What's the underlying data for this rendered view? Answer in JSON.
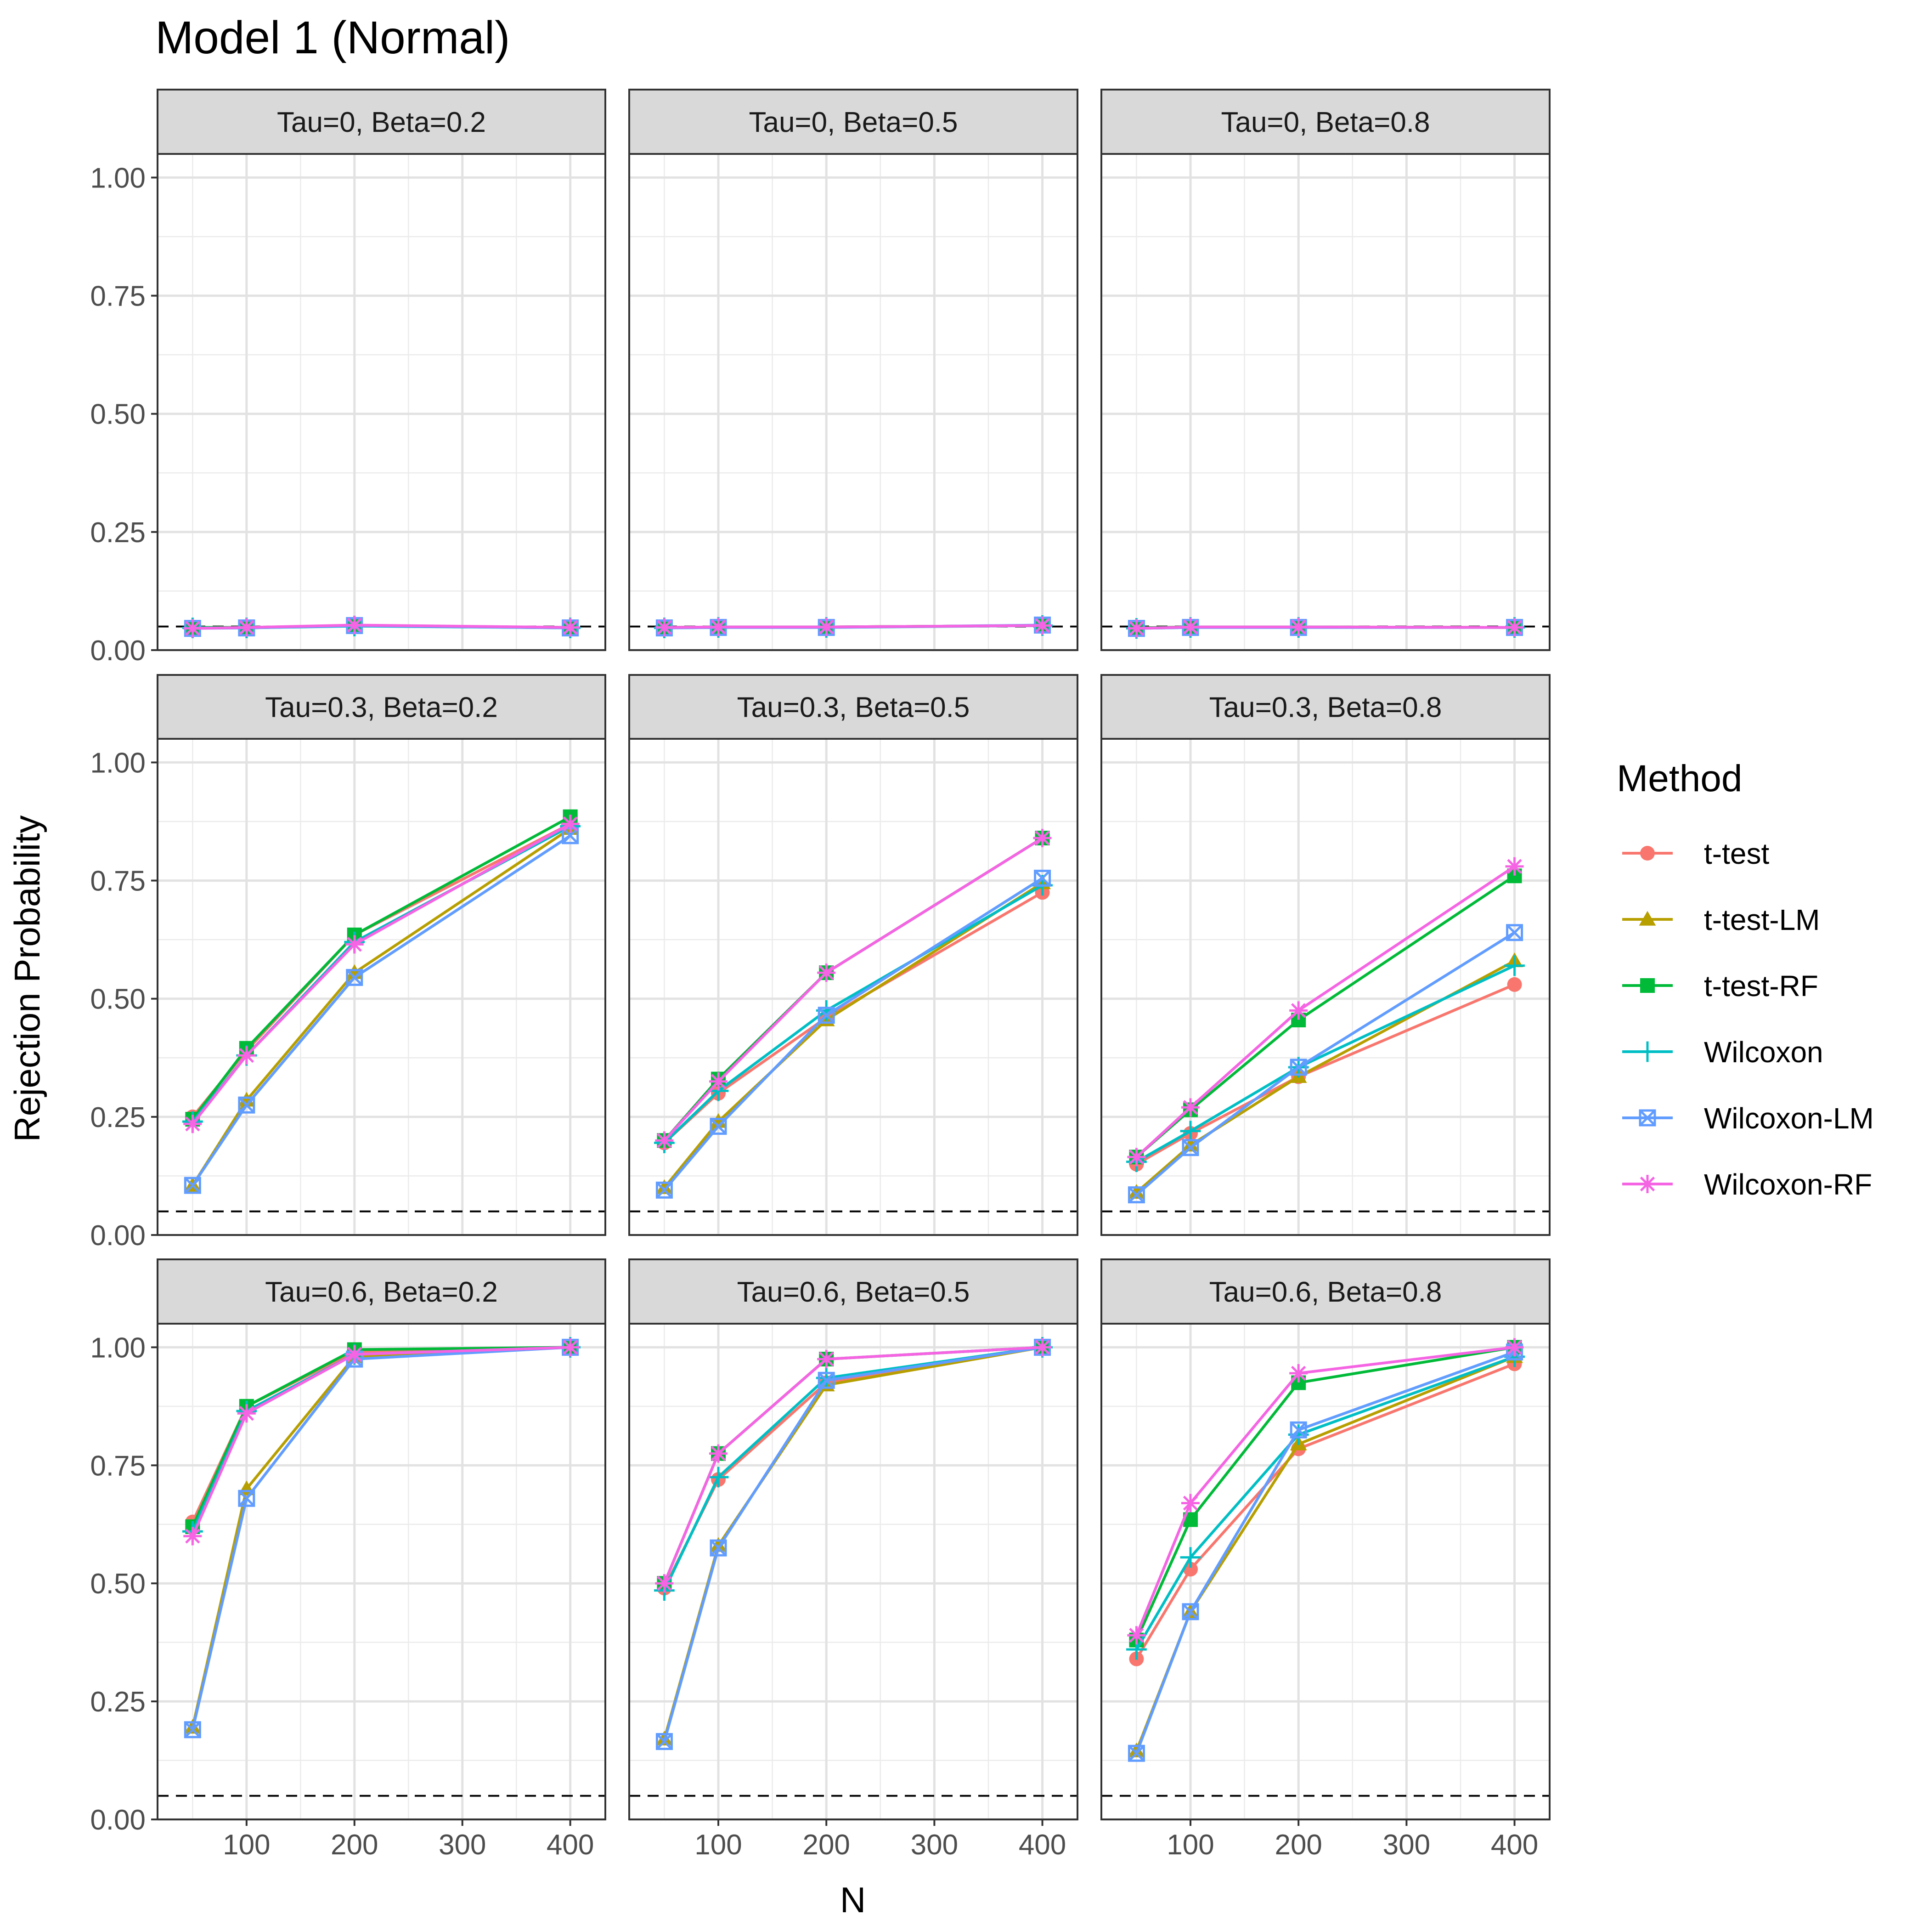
{
  "chart_data": {
    "type": "line",
    "title": "Model 1 (Normal)",
    "xlabel": "N",
    "ylabel": "Rejection Probability",
    "x": [
      50,
      100,
      200,
      400
    ],
    "x_ticks": [
      100,
      200,
      300,
      400
    ],
    "x_tick_labels": [
      "100",
      "200",
      "300",
      "400"
    ],
    "xlim": [
      17.5,
      432.5
    ],
    "y_ticks": [
      0,
      0.25,
      0.5,
      0.75,
      1
    ],
    "y_tick_labels": [
      "0.00",
      "0.25",
      "0.50",
      "0.75",
      "1.00"
    ],
    "ylim": [
      0,
      1.05
    ],
    "reference_line": 0.05,
    "grid": true,
    "legend": {
      "title": "Method",
      "position": "right"
    },
    "series_styles": [
      {
        "name": "t-test",
        "color": "#F8766D",
        "shape": "circle"
      },
      {
        "name": "t-test-LM",
        "color": "#B79F00",
        "shape": "triangle"
      },
      {
        "name": "t-test-RF",
        "color": "#00BA38",
        "shape": "square"
      },
      {
        "name": "Wilcoxon",
        "color": "#00BFC4",
        "shape": "plus"
      },
      {
        "name": "Wilcoxon-LM",
        "color": "#619CFF",
        "shape": "square-x"
      },
      {
        "name": "Wilcoxon-RF",
        "color": "#F564E3",
        "shape": "asterisk"
      }
    ],
    "panels": [
      {
        "label": "Tau=0, Beta=0.2",
        "series": [
          {
            "name": "t-test",
            "values": [
              0.048,
              0.047,
              0.052,
              0.047
            ]
          },
          {
            "name": "t-test-LM",
            "values": [
              0.048,
              0.048,
              0.052,
              0.048
            ]
          },
          {
            "name": "t-test-RF",
            "values": [
              0.048,
              0.048,
              0.052,
              0.048
            ]
          },
          {
            "name": "Wilcoxon",
            "values": [
              0.047,
              0.047,
              0.051,
              0.047
            ]
          },
          {
            "name": "Wilcoxon-LM",
            "values": [
              0.046,
              0.047,
              0.052,
              0.047
            ]
          },
          {
            "name": "Wilcoxon-RF",
            "values": [
              0.046,
              0.048,
              0.053,
              0.048
            ]
          }
        ]
      },
      {
        "label": "Tau=0, Beta=0.5",
        "series": [
          {
            "name": "t-test",
            "values": [
              0.048,
              0.049,
              0.049,
              0.052
            ]
          },
          {
            "name": "t-test-LM",
            "values": [
              0.048,
              0.049,
              0.049,
              0.052
            ]
          },
          {
            "name": "t-test-RF",
            "values": [
              0.048,
              0.049,
              0.049,
              0.052
            ]
          },
          {
            "name": "Wilcoxon",
            "values": [
              0.047,
              0.048,
              0.048,
              0.052
            ]
          },
          {
            "name": "Wilcoxon-LM",
            "values": [
              0.047,
              0.048,
              0.048,
              0.053
            ]
          },
          {
            "name": "Wilcoxon-RF",
            "values": [
              0.048,
              0.049,
              0.049,
              0.052
            ]
          }
        ]
      },
      {
        "label": "Tau=0, Beta=0.8",
        "series": [
          {
            "name": "t-test",
            "values": [
              0.047,
              0.049,
              0.049,
              0.048
            ]
          },
          {
            "name": "t-test-LM",
            "values": [
              0.047,
              0.049,
              0.049,
              0.048
            ]
          },
          {
            "name": "t-test-RF",
            "values": [
              0.047,
              0.049,
              0.049,
              0.048
            ]
          },
          {
            "name": "Wilcoxon",
            "values": [
              0.046,
              0.048,
              0.048,
              0.048
            ]
          },
          {
            "name": "Wilcoxon-LM",
            "values": [
              0.046,
              0.048,
              0.048,
              0.048
            ]
          },
          {
            "name": "Wilcoxon-RF",
            "values": [
              0.046,
              0.049,
              0.049,
              0.048
            ]
          }
        ]
      },
      {
        "label": "Tau=0.3, Beta=0.2",
        "series": [
          {
            "name": "t-test",
            "values": [
              0.25,
              0.39,
              0.635,
              0.87
            ]
          },
          {
            "name": "t-test-LM",
            "values": [
              0.105,
              0.285,
              0.555,
              0.86
            ]
          },
          {
            "name": "t-test-RF",
            "values": [
              0.245,
              0.395,
              0.635,
              0.885
            ]
          },
          {
            "name": "Wilcoxon",
            "values": [
              0.24,
              0.38,
              0.62,
              0.865
            ]
          },
          {
            "name": "Wilcoxon-LM",
            "values": [
              0.105,
              0.275,
              0.545,
              0.845
            ]
          },
          {
            "name": "Wilcoxon-RF",
            "values": [
              0.235,
              0.38,
              0.615,
              0.87
            ]
          }
        ]
      },
      {
        "label": "Tau=0.3, Beta=0.5",
        "series": [
          {
            "name": "t-test",
            "values": [
              0.195,
              0.3,
              0.46,
              0.725
            ]
          },
          {
            "name": "t-test-LM",
            "values": [
              0.1,
              0.24,
              0.455,
              0.745
            ]
          },
          {
            "name": "t-test-RF",
            "values": [
              0.2,
              0.33,
              0.555,
              0.84
            ]
          },
          {
            "name": "Wilcoxon",
            "values": [
              0.195,
              0.305,
              0.475,
              0.74
            ]
          },
          {
            "name": "Wilcoxon-LM",
            "values": [
              0.095,
              0.23,
              0.465,
              0.755
            ]
          },
          {
            "name": "Wilcoxon-RF",
            "values": [
              0.2,
              0.325,
              0.555,
              0.84
            ]
          }
        ]
      },
      {
        "label": "Tau=0.3, Beta=0.8",
        "series": [
          {
            "name": "t-test",
            "values": [
              0.15,
              0.215,
              0.335,
              0.53
            ]
          },
          {
            "name": "t-test-LM",
            "values": [
              0.09,
              0.19,
              0.335,
              0.58
            ]
          },
          {
            "name": "t-test-RF",
            "values": [
              0.165,
              0.265,
              0.455,
              0.76
            ]
          },
          {
            "name": "Wilcoxon",
            "values": [
              0.155,
              0.22,
              0.355,
              0.57
            ]
          },
          {
            "name": "Wilcoxon-LM",
            "values": [
              0.085,
              0.185,
              0.355,
              0.64
            ]
          },
          {
            "name": "Wilcoxon-RF",
            "values": [
              0.165,
              0.27,
              0.475,
              0.78
            ]
          }
        ]
      },
      {
        "label": "Tau=0.6, Beta=0.2",
        "series": [
          {
            "name": "t-test",
            "values": [
              0.63,
              0.875,
              0.99,
              1.0
            ]
          },
          {
            "name": "t-test-LM",
            "values": [
              0.195,
              0.7,
              0.98,
              1.0
            ]
          },
          {
            "name": "t-test-RF",
            "values": [
              0.62,
              0.875,
              0.995,
              1.0
            ]
          },
          {
            "name": "Wilcoxon",
            "values": [
              0.61,
              0.865,
              0.985,
              1.0
            ]
          },
          {
            "name": "Wilcoxon-LM",
            "values": [
              0.19,
              0.68,
              0.975,
              1.0
            ]
          },
          {
            "name": "Wilcoxon-RF",
            "values": [
              0.6,
              0.86,
              0.985,
              1.0
            ]
          }
        ]
      },
      {
        "label": "Tau=0.6, Beta=0.5",
        "series": [
          {
            "name": "t-test",
            "values": [
              0.49,
              0.72,
              0.925,
              1.0
            ]
          },
          {
            "name": "t-test-LM",
            "values": [
              0.17,
              0.58,
              0.92,
              1.0
            ]
          },
          {
            "name": "t-test-RF",
            "values": [
              0.5,
              0.775,
              0.975,
              1.0
            ]
          },
          {
            "name": "Wilcoxon",
            "values": [
              0.485,
              0.725,
              0.935,
              1.0
            ]
          },
          {
            "name": "Wilcoxon-LM",
            "values": [
              0.165,
              0.575,
              0.93,
              1.0
            ]
          },
          {
            "name": "Wilcoxon-RF",
            "values": [
              0.5,
              0.775,
              0.975,
              1.0
            ]
          }
        ]
      },
      {
        "label": "Tau=0.6, Beta=0.8",
        "series": [
          {
            "name": "t-test",
            "values": [
              0.34,
              0.53,
              0.785,
              0.965
            ]
          },
          {
            "name": "t-test-LM",
            "values": [
              0.145,
              0.44,
              0.795,
              0.98
            ]
          },
          {
            "name": "t-test-RF",
            "values": [
              0.38,
              0.635,
              0.925,
              1.0
            ]
          },
          {
            "name": "Wilcoxon",
            "values": [
              0.36,
              0.555,
              0.815,
              0.98
            ]
          },
          {
            "name": "Wilcoxon-LM",
            "values": [
              0.14,
              0.44,
              0.825,
              0.99
            ]
          },
          {
            "name": "Wilcoxon-RF",
            "values": [
              0.39,
              0.67,
              0.945,
              1.0
            ]
          }
        ]
      }
    ]
  }
}
